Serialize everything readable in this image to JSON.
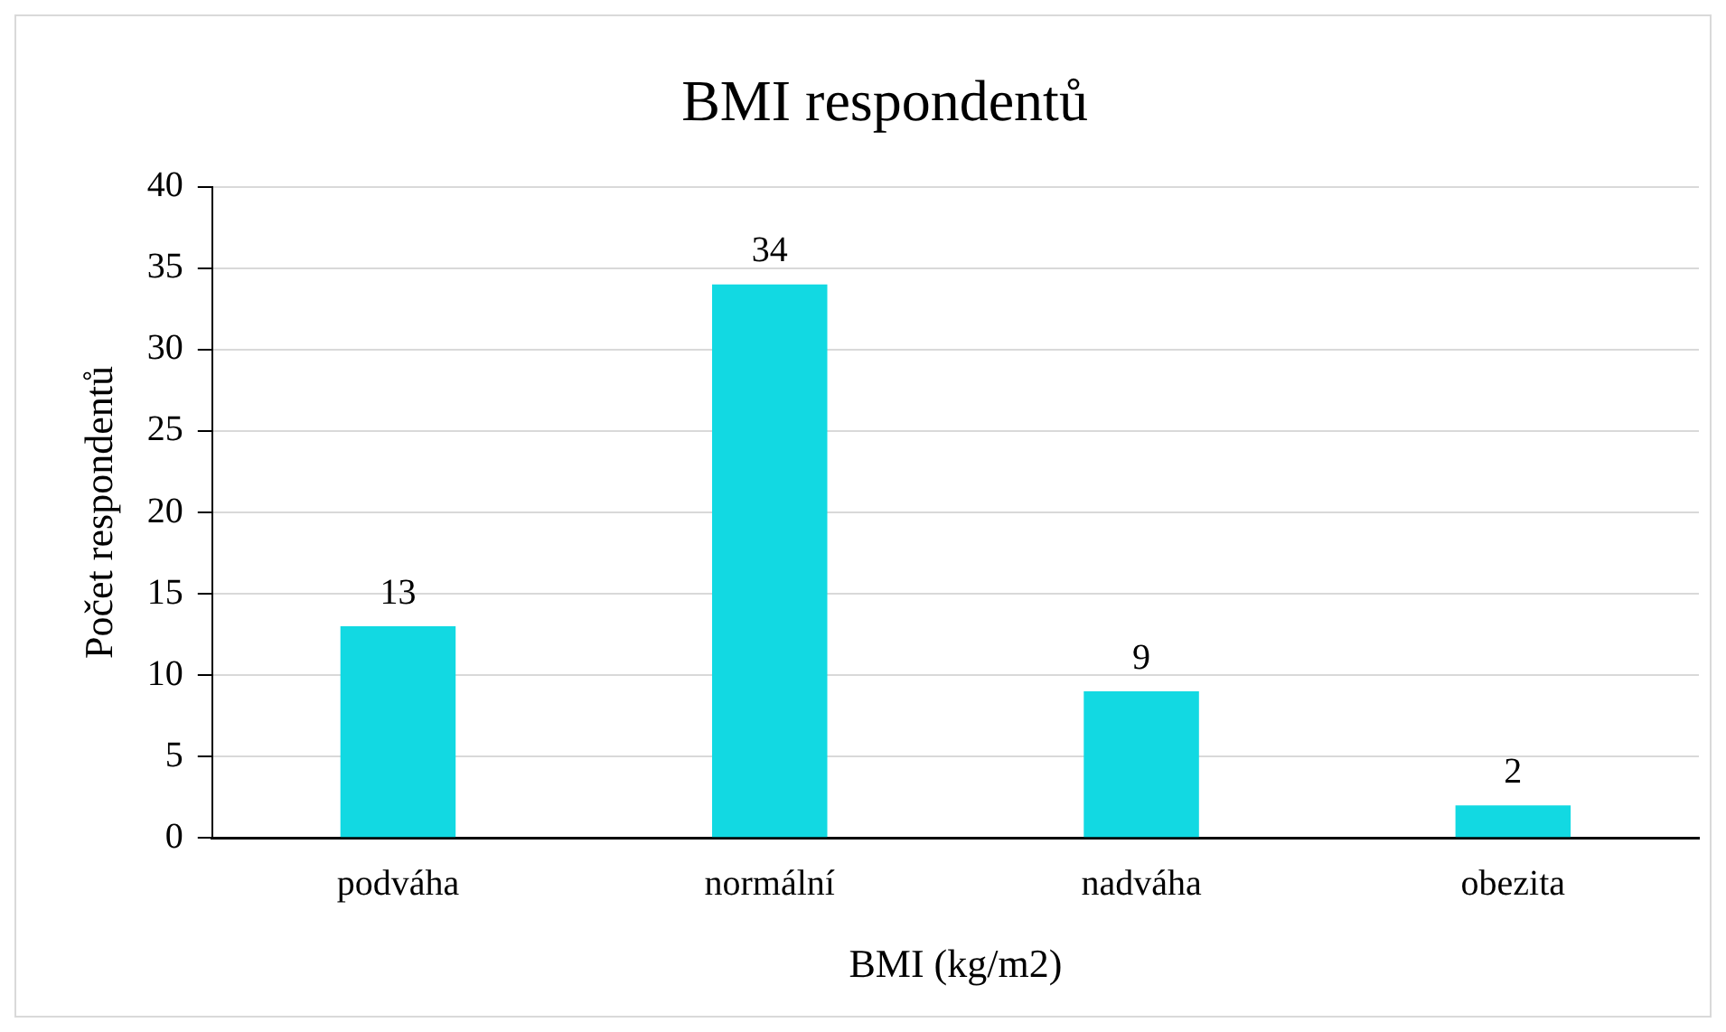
{
  "chart_data": {
    "type": "bar",
    "title": "BMI respondentů",
    "xlabel": "BMI (kg/m2)",
    "ylabel": "Počet respondentů",
    "categories": [
      "podváha",
      "normální",
      "nadváha",
      "obezita"
    ],
    "values": [
      13,
      34,
      9,
      2
    ],
    "color": "#12d9e2",
    "ylim": [
      0,
      40
    ],
    "yticks": [
      0,
      5,
      10,
      15,
      20,
      25,
      30,
      35,
      40
    ],
    "grid": "y",
    "data_labels": true
  }
}
